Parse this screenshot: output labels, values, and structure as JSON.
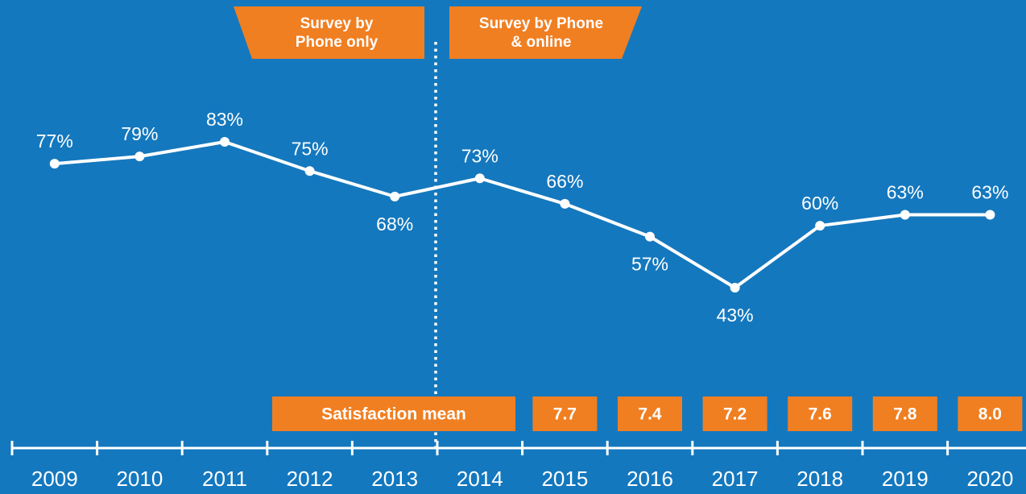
{
  "chart_data": {
    "type": "line",
    "categories": [
      "2009",
      "2010",
      "2011",
      "2012",
      "2013",
      "2014",
      "2015",
      "2016",
      "2017",
      "2018",
      "2019",
      "2020"
    ],
    "series": [
      {
        "color": "#ffffff",
        "values": [
          77,
          79,
          83,
          75,
          68,
          73,
          66,
          57,
          43,
          60,
          63,
          63
        ],
        "value_labels": [
          "77%",
          "79%",
          "83%",
          "75%",
          "68%",
          "73%",
          "66%",
          "57%",
          "43%",
          "60%",
          "63%",
          "63%"
        ]
      }
    ],
    "annotations": [
      {
        "lines": [
          "Survey by",
          "Phone only"
        ]
      },
      {
        "lines": [
          "Survey by Phone",
          "& online"
        ]
      }
    ],
    "satisfaction": {
      "label": "Satisfaction mean",
      "color": "#f07f22",
      "values": [
        null,
        null,
        null,
        null,
        null,
        null,
        7.7,
        7.4,
        7.2,
        7.6,
        7.8,
        8.0
      ],
      "value_labels": [
        null,
        null,
        null,
        null,
        null,
        null,
        "7.7",
        "7.4",
        "7.2",
        "7.6",
        "7.8",
        "8.0"
      ]
    }
  }
}
